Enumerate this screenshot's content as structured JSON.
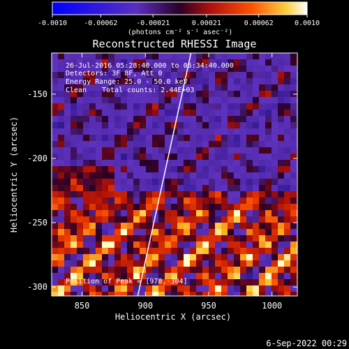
{
  "chart_data": {
    "type": "heatmap",
    "title": "Reconstructed RHESSI Image",
    "xlabel": "Heliocentric X (arcsec)",
    "ylabel": "Heliocentric Y (arcsec)",
    "xlim": [
      826,
      1020
    ],
    "ylim": [
      -307,
      -118
    ],
    "x_ticks": [
      850,
      900,
      950,
      1000
    ],
    "y_ticks": [
      -150,
      -200,
      -250,
      -300
    ],
    "x_tick_labels": [
      "850",
      "900",
      "950",
      "1000"
    ],
    "y_tick_labels": [
      "-150",
      "-200",
      "-250",
      "-300"
    ],
    "colorbar": {
      "range": [
        -0.001,
        0.001
      ],
      "ticks": [
        -0.001,
        -0.00062,
        -0.00021,
        0.00021,
        0.00062,
        0.001
      ],
      "tick_labels": [
        "-0.0010",
        "-0.00062",
        "-0.00021",
        "0.00021",
        "0.00062",
        "0.0010"
      ],
      "units_label": "(photons cm⁻² s⁻¹ asec⁻²)"
    },
    "limb_line": [
      [
        894,
        -307
      ],
      [
        936,
        -118
      ]
    ],
    "peak": [
      978,
      -304
    ],
    "annotations": {
      "time_range": "26-Jul-2016 05:28:40.000 to 05:34:40.000",
      "detectors": "Detectors: 3F 8F, Att 0",
      "energy": "Energy Range: 25.0 - 50.0 keV",
      "clean": "Clean",
      "total_counts": "Total counts: 2.44E+03",
      "peak_text": "Position of Peak = [978,-304]"
    },
    "footer_date": "6-Sep-2022 00:29",
    "colors": {
      "background": "#000000",
      "foreground": "#ffffff",
      "cmap_neg": "#0000ff",
      "cmap_mid": "#6a2fbf",
      "cmap_pos_low": "#c01010",
      "cmap_pos_high": "#ffff60"
    }
  }
}
